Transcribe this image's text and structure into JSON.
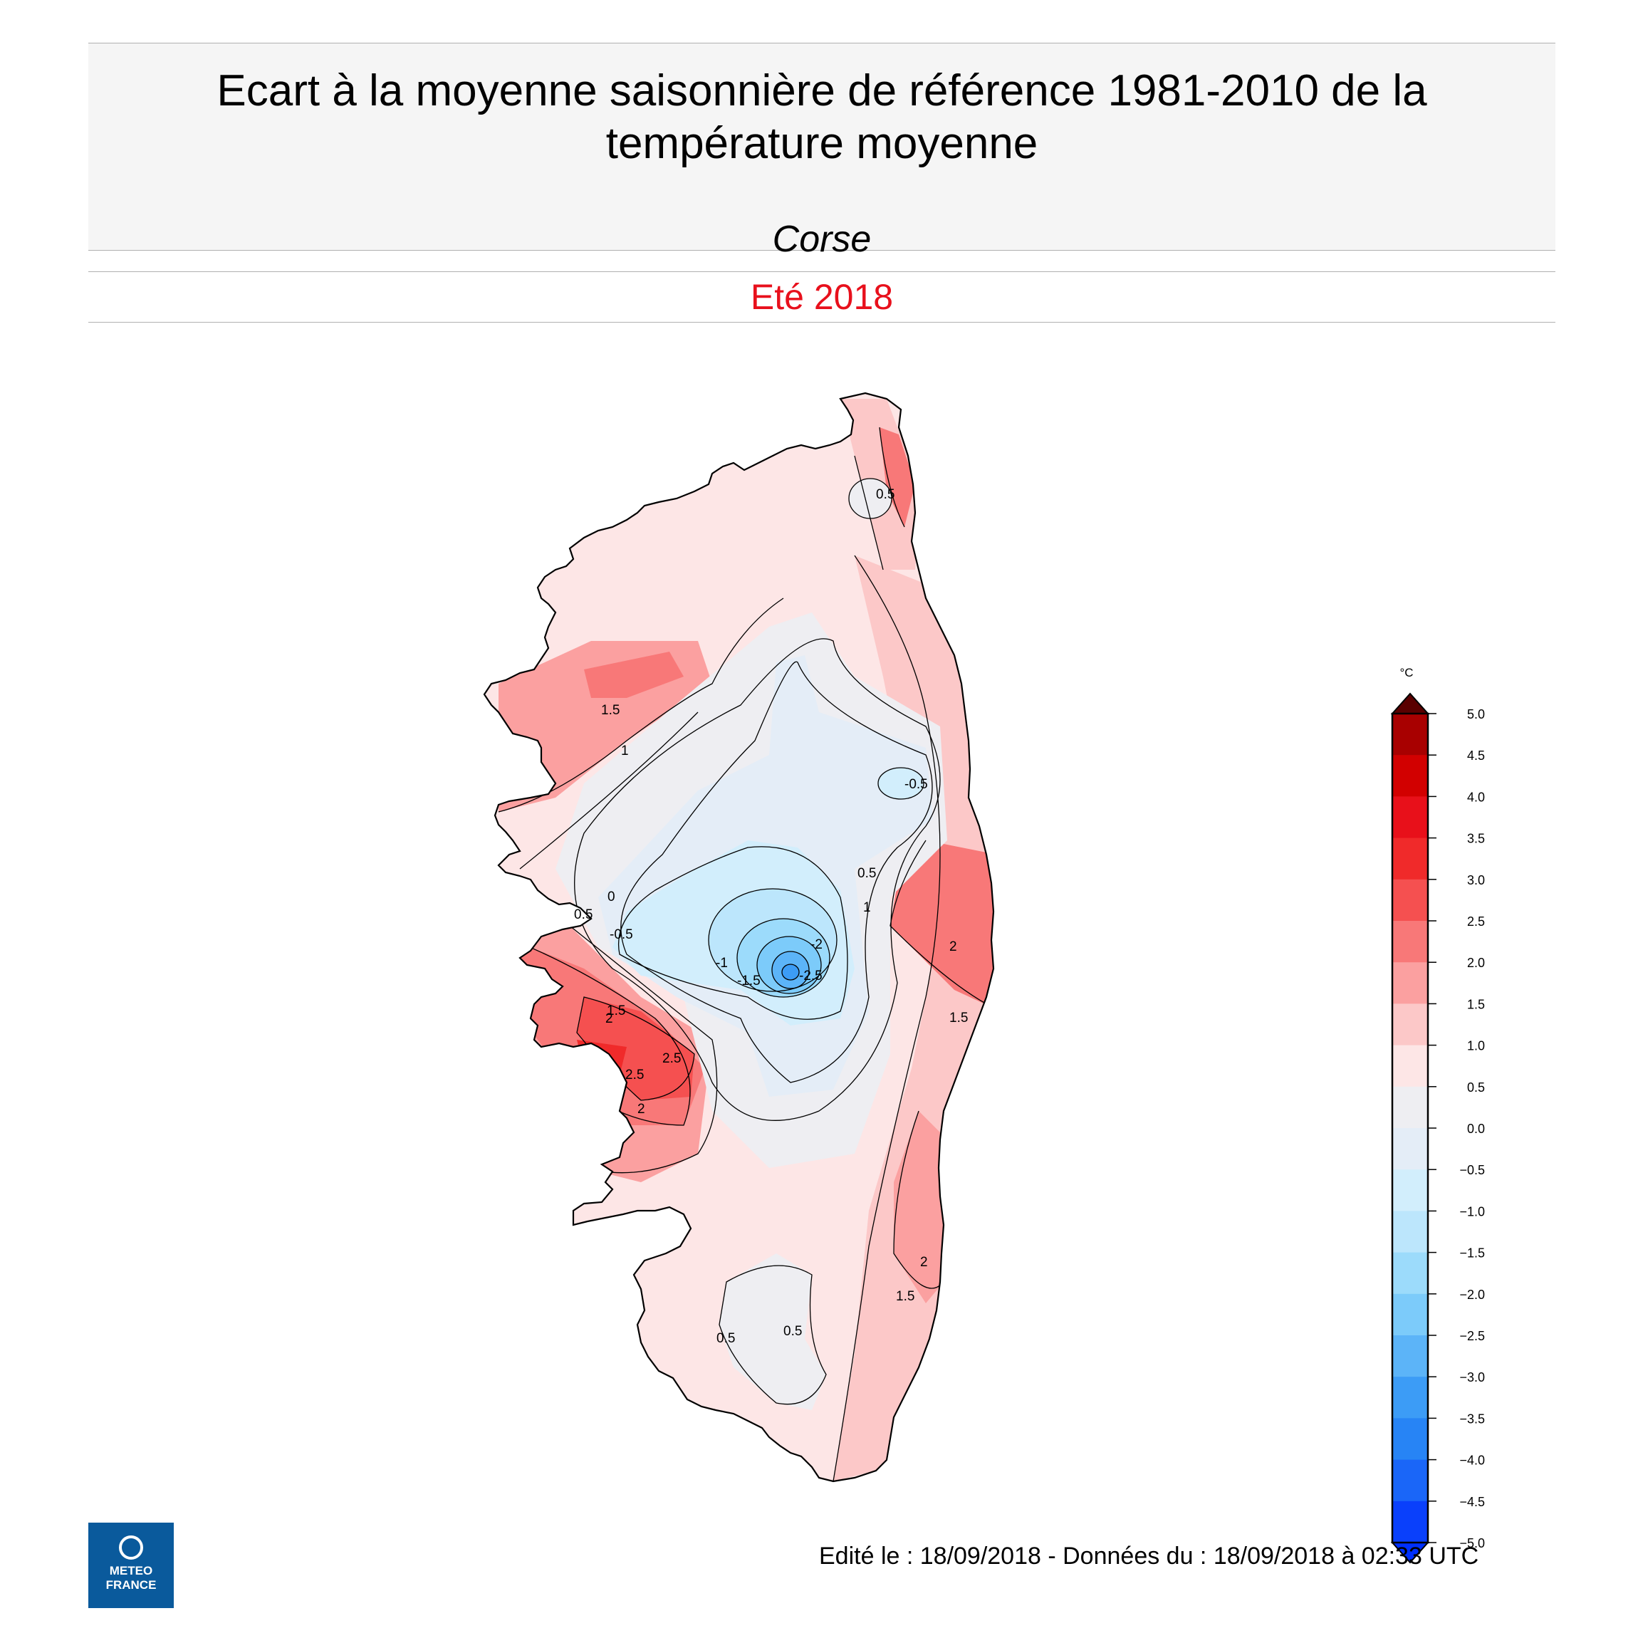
{
  "header": {
    "title_line1": "Ecart à la moyenne saisonnière de référence 1981-2010 de la",
    "title_line2": "température moyenne",
    "region": "Corse",
    "season": "Eté 2018"
  },
  "colorbar": {
    "unit": "°C",
    "ticks": [
      "5.0",
      "4.5",
      "4.0",
      "3.5",
      "3.0",
      "2.5",
      "2.0",
      "1.5",
      "1.0",
      "0.5",
      "0.0",
      "−0.5",
      "−1.0",
      "−1.5",
      "−2.0",
      "−2.5",
      "−3.0",
      "−3.5",
      "−4.0",
      "−4.5",
      "−5.0"
    ],
    "colors": [
      "#6e0000",
      "#a80000",
      "#d20000",
      "#e8101a",
      "#f02a2a",
      "#f55050",
      "#f87878",
      "#fba0a0",
      "#fcc8c8",
      "#fde6e6",
      "#eeeef2",
      "#e4edf7",
      "#d2eefc",
      "#bce6fc",
      "#9cdbfb",
      "#7ccbfa",
      "#5cb4f8",
      "#3c9cf6",
      "#2784f5",
      "#1a66f8",
      "#0a40fb"
    ],
    "top_arrow_color": "#5a0000",
    "bottom_arrow_color": "#0030ff"
  },
  "contour_labels": [
    "1.5",
    "1",
    "0.5",
    "0",
    "-0.5",
    "-1",
    "-1.5",
    "-2",
    "-2.5",
    "2",
    "2.5",
    "1.5",
    "0.5",
    "0.5",
    "-0.5",
    "2",
    "1.5",
    "2",
    "0.5",
    "1.5",
    "2",
    "2.5",
    "0.5",
    "1"
  ],
  "footer": {
    "edited": "Edité le : 18/09/2018 - Données du : 18/09/2018 à 02:33 UTC"
  },
  "logo": {
    "line1": "METEO",
    "line2": "FRANCE"
  }
}
